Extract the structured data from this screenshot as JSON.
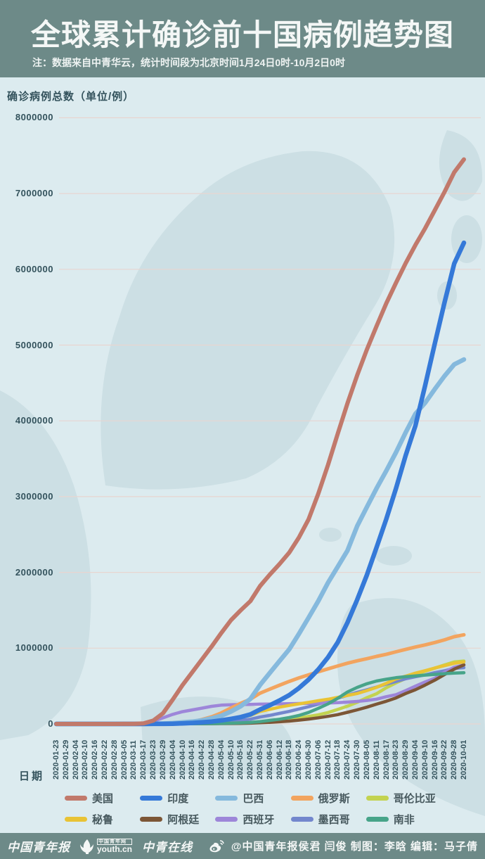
{
  "header": {
    "title": "全球累计确诊前十国病例趋势图",
    "note": "注：数据来自中青华云，统计时间段为北京时间1月24日0时-10月2日0时"
  },
  "axis": {
    "y_title": "确诊病例总数（单位/例）",
    "x_title": "日期"
  },
  "colors": {
    "band": "#6d8a88",
    "page_bg": "#dcebef",
    "map_watermark": "#ccdfe4",
    "gridline": "#e8d5d0",
    "axis_text": "#33525c",
    "header_text": "#f4f7f6",
    "legend_text": "#47595e"
  },
  "chart_data": {
    "type": "line",
    "title": "全球累计确诊前十国病例趋势图",
    "xlabel": "日期",
    "ylabel": "确诊病例总数（单位/例）",
    "ylim": [
      0,
      8000000
    ],
    "grid": true,
    "legend_position": "bottom",
    "y_ticks": [
      "0",
      "1000000",
      "2000000",
      "3000000",
      "4000000",
      "5000000",
      "6000000",
      "7000000",
      "8000000"
    ],
    "x": [
      "2020-01-23",
      "2020-01-29",
      "2020-02-04",
      "2020-02-10",
      "2020-02-16",
      "2020-02-22",
      "2020-02-28",
      "2020-03-05",
      "2020-03-11",
      "2020-03-17",
      "2020-03-23",
      "2020-03-29",
      "2020-04-04",
      "2020-04-10",
      "2020-04-16",
      "2020-04-22",
      "2020-04-28",
      "2020-05-04",
      "2020-05-10",
      "2020-05-16",
      "2020-05-22",
      "2020-05-31",
      "2020-06-06",
      "2020-06-12",
      "2020-06-18",
      "2020-06-24",
      "2020-06-30",
      "2020-07-06",
      "2020-07-12",
      "2020-07-18",
      "2020-07-24",
      "2020-07-30",
      "2020-08-05",
      "2020-08-11",
      "2020-08-17",
      "2020-08-23",
      "2020-08-29",
      "2020-09-04",
      "2020-09-10",
      "2020-09-16",
      "2020-09-22",
      "2020-09-28",
      "2020-10-01"
    ],
    "series": [
      {
        "id": "usa",
        "name": "美国",
        "color": "#c1796b",
        "width": 6,
        "values": [
          0,
          0,
          0,
          0,
          0,
          0,
          0,
          1000,
          1300,
          6500,
          44000,
          140000,
          320000,
          510000,
          680000,
          850000,
          1020000,
          1200000,
          1370000,
          1500000,
          1620000,
          1820000,
          1970000,
          2110000,
          2260000,
          2460000,
          2700000,
          3040000,
          3420000,
          3830000,
          4230000,
          4600000,
          4940000,
          5250000,
          5550000,
          5820000,
          6080000,
          6320000,
          6540000,
          6780000,
          7020000,
          7280000,
          7450000
        ]
      },
      {
        "id": "india",
        "name": "印度",
        "color": "#3579d8",
        "width": 6.5,
        "values": [
          0,
          0,
          0,
          0,
          0,
          0,
          0,
          0,
          100,
          200,
          500,
          1000,
          3000,
          7000,
          13000,
          21000,
          31000,
          46000,
          67000,
          90000,
          125000,
          190000,
          246000,
          309000,
          380000,
          473000,
          585000,
          720000,
          879000,
          1077000,
          1337000,
          1638000,
          1964000,
          2329000,
          2702000,
          3106000,
          3542000,
          3936000,
          4465000,
          5020000,
          5562000,
          6074000,
          6350000
        ]
      },
      {
        "id": "brazil",
        "name": "巴西",
        "color": "#85b9dd",
        "width": 6.5,
        "values": [
          0,
          0,
          0,
          0,
          0,
          0,
          0,
          0,
          0,
          300,
          2000,
          4300,
          10000,
          20000,
          30000,
          46000,
          73000,
          108000,
          163000,
          233000,
          330000,
          514000,
          672000,
          829000,
          983000,
          1188000,
          1402000,
          1623000,
          1864000,
          2074000,
          2287000,
          2610000,
          2862000,
          3109000,
          3340000,
          3582000,
          3846000,
          4092000,
          4238000,
          4419000,
          4591000,
          4745000,
          4810000
        ]
      },
      {
        "id": "russia",
        "name": "俄罗斯",
        "color": "#f2a45f",
        "width": 5,
        "values": [
          0,
          0,
          0,
          0,
          0,
          0,
          0,
          0,
          0,
          100,
          440,
          1500,
          4700,
          12000,
          28000,
          58000,
          94000,
          145000,
          210000,
          272000,
          326000,
          406000,
          459000,
          511000,
          561000,
          607000,
          648000,
          688000,
          727000,
          765000,
          801000,
          833000,
          861000,
          891000,
          918000,
          952000,
          983000,
          1015000,
          1043000,
          1074000,
          1110000,
          1151000,
          1176000
        ]
      },
      {
        "id": "colombia",
        "name": "哥伦比亚",
        "color": "#c3d350",
        "width": 4.5,
        "values": [
          0,
          0,
          0,
          0,
          0,
          0,
          0,
          0,
          0,
          0,
          300,
          700,
          1400,
          2500,
          3100,
          4100,
          5600,
          8100,
          11000,
          15000,
          19000,
          29000,
          38000,
          47000,
          60000,
          77000,
          98000,
          120000,
          150000,
          191000,
          234000,
          285000,
          346000,
          398000,
          477000,
          541000,
          600000,
          650000,
          695000,
          736000,
          778000,
          818000,
          830000
        ]
      },
      {
        "id": "peru",
        "name": "秘鲁",
        "color": "#e9c335",
        "width": 4.5,
        "values": [
          0,
          0,
          0,
          0,
          0,
          0,
          0,
          0,
          0,
          100,
          400,
          1000,
          1800,
          5900,
          12000,
          19000,
          31000,
          47000,
          67000,
          89000,
          112000,
          164000,
          192000,
          221000,
          244000,
          265000,
          285000,
          306000,
          326000,
          351000,
          376000,
          401000,
          440000,
          483000,
          536000,
          594000,
          630000,
          670000,
          703000,
          738000,
          769000,
          800000,
          818000
        ]
      },
      {
        "id": "argentina",
        "name": "阿根廷",
        "color": "#7c5636",
        "width": 4.5,
        "values": [
          0,
          0,
          0,
          0,
          0,
          0,
          0,
          0,
          0,
          0,
          300,
          700,
          1500,
          2000,
          2600,
          3200,
          4000,
          4900,
          5800,
          7800,
          10600,
          16900,
          21000,
          28800,
          37500,
          49900,
          64500,
          80400,
          100200,
          122500,
          153500,
          185400,
          221200,
          260900,
          299100,
          342200,
          401200,
          451200,
          512300,
          577300,
          652200,
          723100,
          779000
        ]
      },
      {
        "id": "spain",
        "name": "西班牙",
        "color": "#9d86d9",
        "width": 4.5,
        "values": [
          0,
          0,
          0,
          0,
          0,
          0,
          0,
          300,
          2300,
          11800,
          35000,
          80000,
          126000,
          162000,
          185000,
          208000,
          232000,
          248000,
          253000,
          256000,
          258000,
          261000,
          263000,
          265000,
          267000,
          269000,
          271000,
          274000,
          277000,
          281000,
          288000,
          297000,
          310000,
          327000,
          359000,
          386000,
          439000,
          499000,
          554000,
          603000,
          682000,
          748000,
          778000
        ]
      },
      {
        "id": "mexico",
        "name": "墨西哥",
        "color": "#7387cd",
        "width": 4.5,
        "values": [
          0,
          0,
          0,
          0,
          0,
          0,
          0,
          0,
          0,
          0,
          300,
          1000,
          1900,
          3400,
          5800,
          10500,
          16800,
          24900,
          35000,
          47100,
          62500,
          90700,
          113600,
          139200,
          165500,
          196800,
          226100,
          261800,
          299800,
          338900,
          378300,
          416200,
          450000,
          485800,
          525700,
          560200,
          595800,
          623100,
          647500,
          676500,
          700600,
          733700,
          743000
        ]
      },
      {
        "id": "southafrica",
        "name": "南非",
        "color": "#47a489",
        "width": 4.5,
        "values": [
          0,
          0,
          0,
          0,
          0,
          0,
          0,
          0,
          0,
          0,
          400,
          1300,
          1600,
          2000,
          2500,
          3600,
          4900,
          7200,
          10000,
          13500,
          19100,
          31000,
          46000,
          61900,
          83900,
          111800,
          151200,
          205700,
          264200,
          337600,
          422000,
          482200,
          529900,
          566100,
          589900,
          609800,
          622600,
          633000,
          644400,
          653400,
          663300,
          671700,
          676000
        ]
      }
    ]
  },
  "footer": {
    "logo_paper": "中国青年报",
    "logo_youth_top": "中国青年网",
    "logo_youth_bottom": "youth.cn",
    "logo_online": "中青在线",
    "credit": "@中国青年报侯君 闫俊 制图：李晗 编辑：马子倩"
  }
}
